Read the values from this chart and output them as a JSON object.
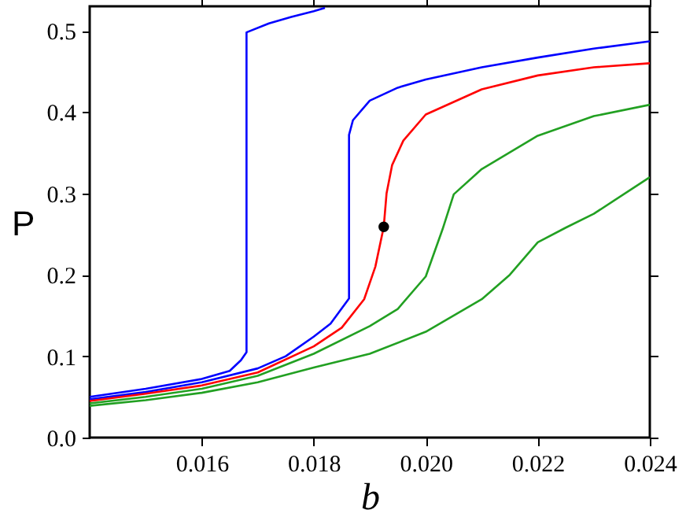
{
  "chart_data": {
    "type": "line",
    "xlabel": "b",
    "ylabel": "P",
    "xlim": [
      0.014,
      0.024
    ],
    "ylim": [
      0,
      0.53
    ],
    "xticks": [
      {
        "value": 0.016,
        "label": "0.016"
      },
      {
        "value": 0.018,
        "label": "0.018"
      },
      {
        "value": 0.02,
        "label": "0.020"
      },
      {
        "value": 0.022,
        "label": "0.022"
      },
      {
        "value": 0.024,
        "label": "0.024"
      }
    ],
    "yticks": [
      {
        "value": 0,
        "label": "0.0"
      },
      0.1,
      0.2,
      0.3,
      0.4,
      0.5
    ],
    "grid": false,
    "line_style": "solid",
    "marker": "none",
    "series": [
      {
        "color": "#0000ff",
        "x": [
          0.014,
          0.015,
          0.016,
          0.0165,
          0.0167,
          0.0168,
          0.0168,
          0.0172,
          0.0176,
          0.018,
          0.0182
        ],
        "values": [
          0.05,
          0.06,
          0.072,
          0.082,
          0.095,
          0.105,
          0.498,
          0.509,
          0.517,
          0.524,
          0.528
        ]
      },
      {
        "color": "#0000ff",
        "x": [
          0.014,
          0.015,
          0.016,
          0.017,
          0.0175,
          0.018,
          0.0183,
          0.01863,
          0.01863,
          0.0187,
          0.019,
          0.0195,
          0.02,
          0.021,
          0.022,
          0.023,
          0.024
        ],
        "values": [
          0.047,
          0.056,
          0.068,
          0.085,
          0.1,
          0.124,
          0.14,
          0.171,
          0.372,
          0.39,
          0.414,
          0.43,
          0.44,
          0.455,
          0.467,
          0.478,
          0.487
        ]
      },
      {
        "color": "#ff0000",
        "x": [
          0.014,
          0.015,
          0.016,
          0.017,
          0.018,
          0.0185,
          0.0189,
          0.0191,
          0.01925,
          0.0193,
          0.0194,
          0.0196,
          0.02,
          0.021,
          0.022,
          0.023,
          0.024
        ],
        "values": [
          0.045,
          0.054,
          0.064,
          0.08,
          0.112,
          0.135,
          0.17,
          0.21,
          0.259,
          0.3,
          0.335,
          0.365,
          0.397,
          0.428,
          0.445,
          0.455,
          0.46
        ]
      },
      {
        "color": "#22a022",
        "x": [
          0.014,
          0.015,
          0.016,
          0.017,
          0.018,
          0.019,
          0.0195,
          0.02,
          0.0203,
          0.0205,
          0.021,
          0.022,
          0.023,
          0.024
        ],
        "values": [
          0.042,
          0.05,
          0.06,
          0.076,
          0.103,
          0.137,
          0.158,
          0.198,
          0.256,
          0.299,
          0.33,
          0.371,
          0.395,
          0.409
        ]
      },
      {
        "color": "#22a022",
        "x": [
          0.014,
          0.015,
          0.016,
          0.017,
          0.018,
          0.019,
          0.02,
          0.021,
          0.0215,
          0.022,
          0.0225,
          0.023,
          0.024
        ],
        "values": [
          0.039,
          0.046,
          0.055,
          0.068,
          0.086,
          0.103,
          0.13,
          0.17,
          0.2,
          0.24,
          0.258,
          0.275,
          0.32
        ]
      },
      {
        "type": "scatter",
        "marker": "circle",
        "color": "#000000",
        "x": [
          0.01925
        ],
        "values": [
          0.259
        ]
      }
    ]
  }
}
